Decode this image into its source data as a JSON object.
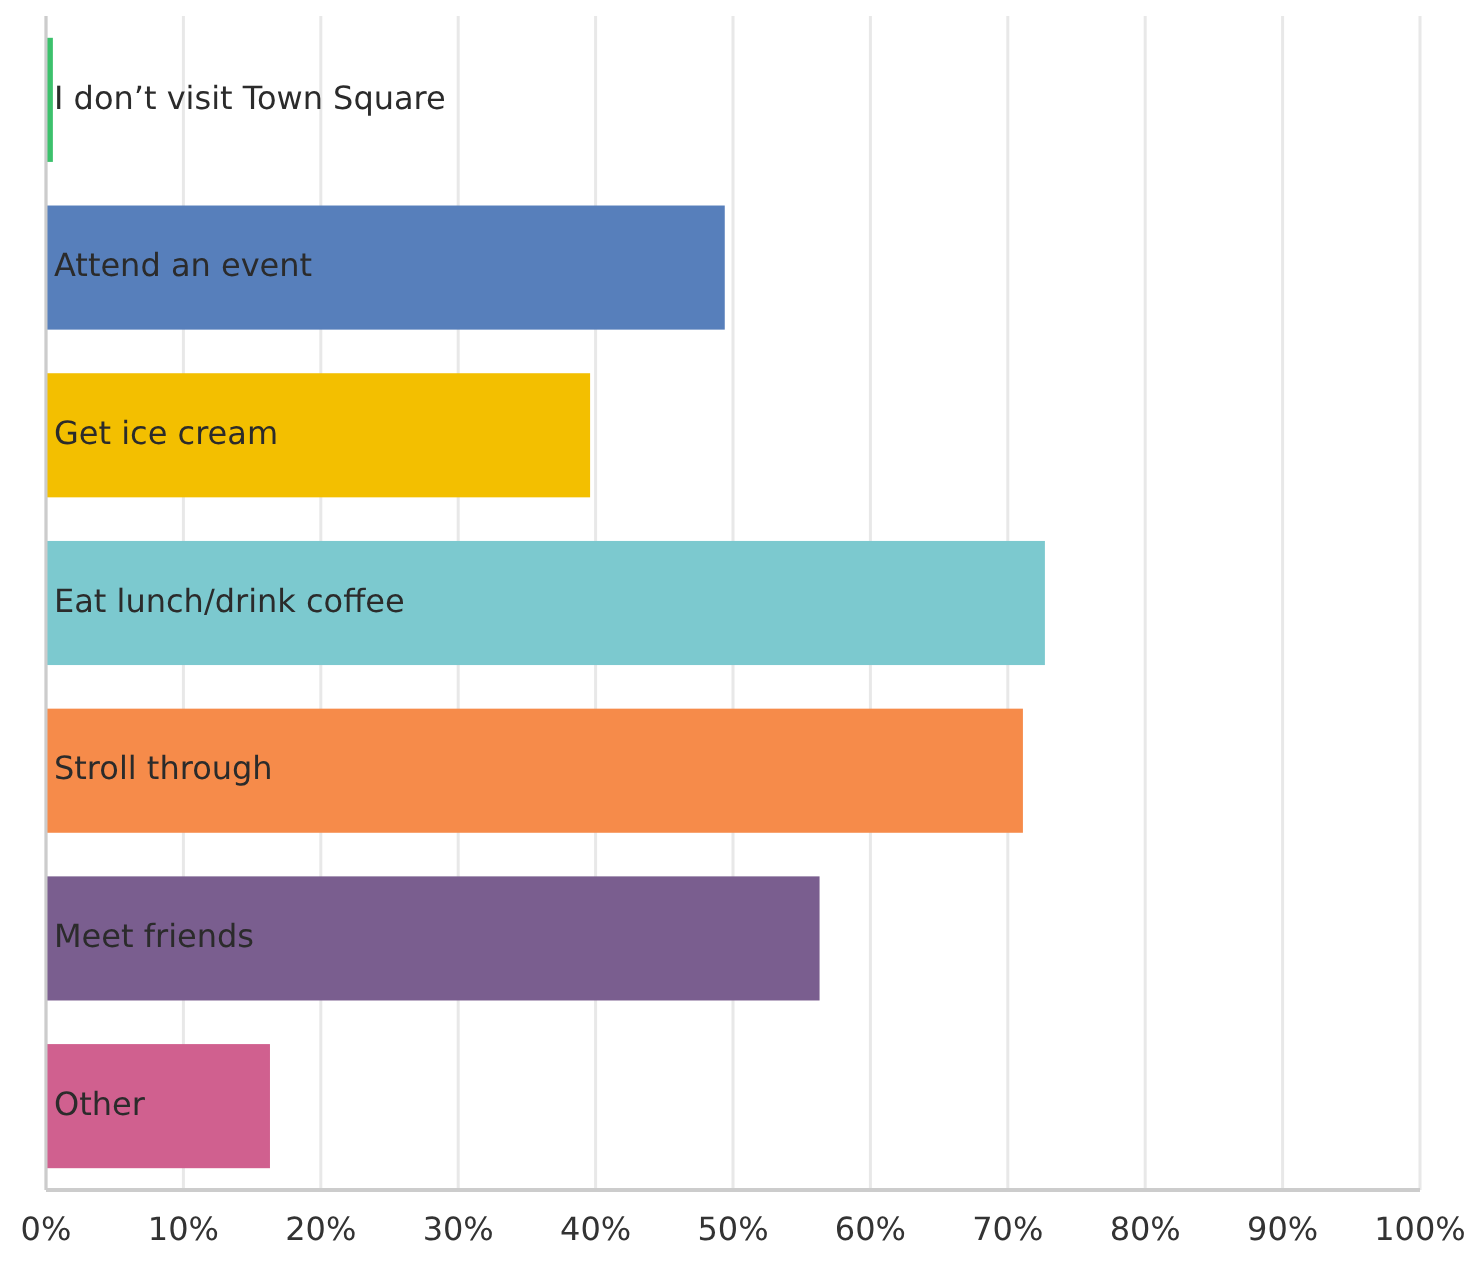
{
  "chart_data": {
    "type": "bar",
    "orientation": "horizontal",
    "categories": [
      "I don’t visit Town Square",
      "Attend an event",
      "Get ice cream",
      "Eat lunch/drink coffee",
      "Stroll through",
      "Meet friends",
      "Other"
    ],
    "values": [
      0.5,
      49.4,
      39.6,
      72.7,
      71.1,
      56.3,
      16.3
    ],
    "colors": [
      "#3cc16c",
      "#577fbb",
      "#f3bf00",
      "#7cc9cf",
      "#f68b4a",
      "#7a5e8f",
      "#d0608f"
    ],
    "xlim": [
      0,
      100
    ],
    "xticks": [
      {
        "value": 0,
        "label": "0%"
      },
      {
        "value": 10,
        "label": "10%"
      },
      {
        "value": 20,
        "label": "20%"
      },
      {
        "value": 30,
        "label": "30%"
      },
      {
        "value": 40,
        "label": "40%"
      },
      {
        "value": 50,
        "label": "50%"
      },
      {
        "value": 60,
        "label": "60%"
      },
      {
        "value": 70,
        "label": "70%"
      },
      {
        "value": 80,
        "label": "80%"
      },
      {
        "value": 90,
        "label": "90%"
      },
      {
        "value": 100,
        "label": "100%"
      }
    ],
    "grid": "x"
  }
}
